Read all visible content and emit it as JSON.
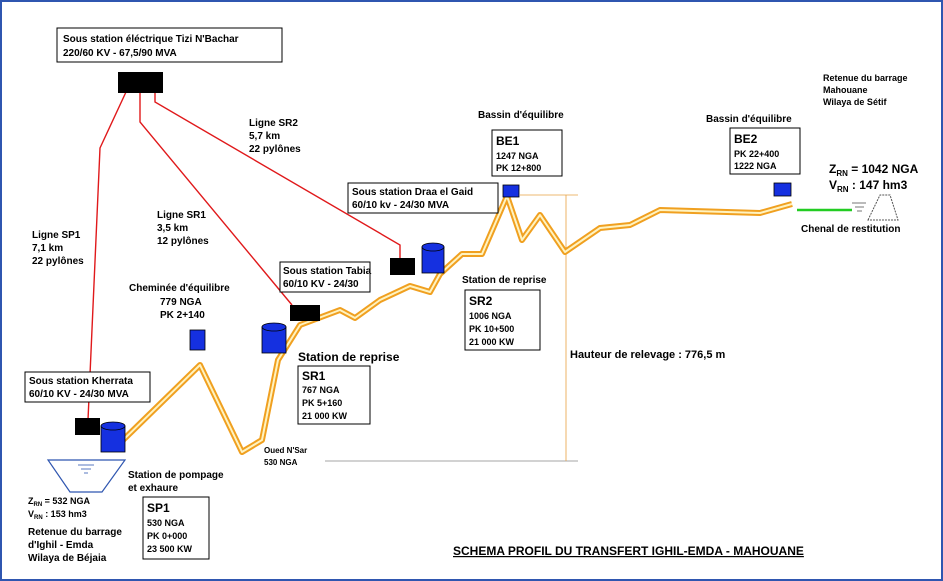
{
  "tizi_nbachar": {
    "name": "Sous station éléctrique Tizi N'Bachar",
    "specs": "220/60 KV - 67,5/90 MVA"
  },
  "lines": [
    {
      "name": "Ligne SP1",
      "length": "7,1 km",
      "pylons": "22 pylônes"
    },
    {
      "name": "Ligne SR1",
      "length": "3,5 km",
      "pylons": "12 pylônes"
    },
    {
      "name": "Ligne SR2",
      "length": "5,7 km",
      "pylons": "22 pylônes"
    }
  ],
  "substations": {
    "kherrata": {
      "name": "Sous station Kherrata",
      "specs": "60/10 KV - 24/30 MVA"
    },
    "tabia": {
      "name": "Sous station Tabia",
      "specs": "60/10 KV - 24/30"
    },
    "draa_el_gaid": {
      "name": "Sous station Draa el Gaid",
      "specs": "60/10 kv - 24/30 MVA"
    }
  },
  "sp1": {
    "caption": [
      "Station de pompage",
      "et exhaure"
    ],
    "name": "SP1",
    "lines": [
      "530 NGA",
      "PK 0+000",
      "23 500 KW"
    ]
  },
  "sr1": {
    "caption": "Station de reprise",
    "name": "SR1",
    "lines": [
      "767 NGA",
      "PK 5+160",
      "21 000 KW"
    ]
  },
  "sr2": {
    "caption": "Station de reprise",
    "name": "SR2",
    "lines": [
      "1006 NGA",
      "PK 10+500",
      "21 000 KW"
    ]
  },
  "chimney": {
    "lines": [
      "Cheminée d'équilibre",
      "779 NGA",
      "PK 2+140"
    ]
  },
  "be1": {
    "caption": "Bassin d'équilibre",
    "name": "BE1",
    "lines": [
      "1247 NGA",
      "PK 12+800"
    ]
  },
  "be2": {
    "caption": "Bassin d'équilibre",
    "name": "BE2",
    "lines": [
      "PK 22+400",
      "1222 NGA"
    ]
  },
  "oued": {
    "lines": [
      "Oued N'Sar",
      "530 NGA"
    ]
  },
  "lift_height": "Hauteur de relevage : 776,5 m",
  "channel": "Chenal de restitution",
  "ighil_emda": {
    "z_symbol": "Z",
    "z_sub": "RN",
    "z_value": " = 532 NGA",
    "v_symbol": "V",
    "v_sub": "RN",
    "v_value": " : 153 hm3",
    "lines": [
      "Retenue du barrage",
      "d'Ighil - Emda",
      "Wilaya de Béjaia"
    ]
  },
  "mahouane": {
    "z_symbol": "Z",
    "z_sub": "RN",
    "z_value": " = 1042 NGA",
    "v_symbol": "V",
    "v_sub": "RN",
    "v_value": " : 147 hm3",
    "lines": [
      "Retenue du barrage",
      "Mahouane",
      "Wilaya de Sétif"
    ]
  },
  "title": "SCHEMA PROFIL DU TRANSFERT IGHIL-EMDA - MAHOUANE"
}
